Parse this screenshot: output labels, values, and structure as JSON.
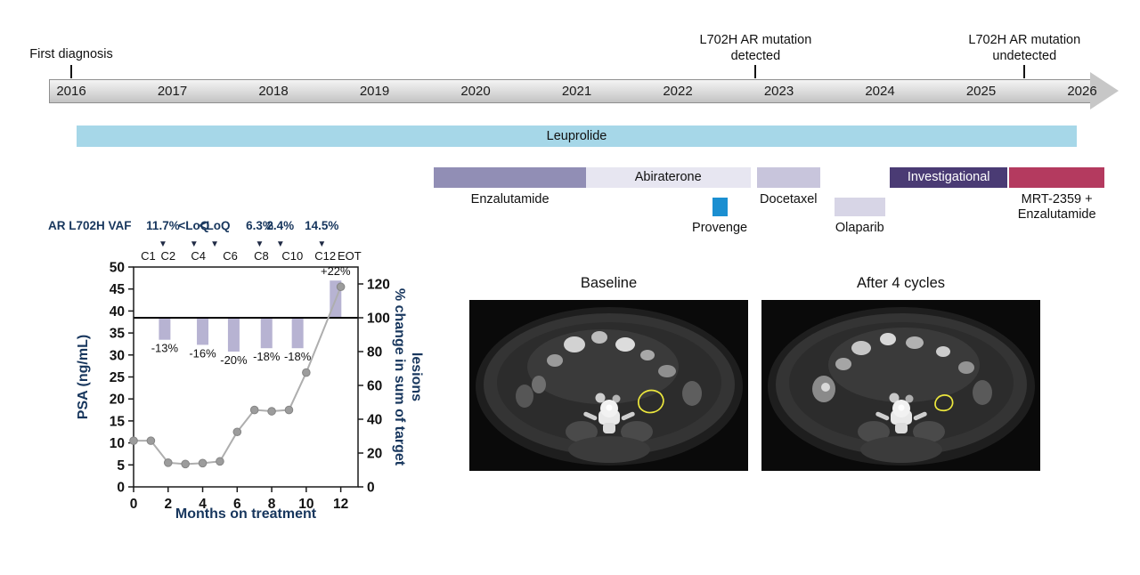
{
  "timeline": {
    "axis": {
      "start_year": 2016,
      "end_year": 2026,
      "years": [
        "2016",
        "2017",
        "2018",
        "2019",
        "2020",
        "2021",
        "2022",
        "2023",
        "2024",
        "2025",
        "2026"
      ]
    },
    "events": [
      {
        "label": "First diagnosis",
        "year": 2016.0
      },
      {
        "label": "L702H AR mutation\ndetected",
        "year": 2022.77
      },
      {
        "label": "L702H AR mutation\nundetected",
        "year": 2025.43
      }
    ],
    "treatments": [
      {
        "label": "Leuprolide",
        "start": 2016.05,
        "end": 2025.95,
        "lane": "hormone",
        "shape": "arrow",
        "color": "#a6d7e8",
        "label_pos": "inside",
        "text_color": "#111111"
      },
      {
        "label": "Enzalutamide",
        "start": 2019.59,
        "end": 2021.09,
        "lane": "row1",
        "shape": "bar",
        "color": "#918eb5",
        "label_pos": "below"
      },
      {
        "label": "Abiraterone",
        "start": 2021.09,
        "end": 2022.72,
        "lane": "row1",
        "shape": "bar",
        "color": "#e7e6f1",
        "label_pos": "inside",
        "text_color": "#111111"
      },
      {
        "label": "Provenge",
        "start": 2022.34,
        "end": 2022.49,
        "lane": "row2",
        "shape": "bar",
        "color": "#1b8fd1",
        "label_pos": "below"
      },
      {
        "label": "Docetaxel",
        "start": 2022.78,
        "end": 2023.41,
        "lane": "row1",
        "shape": "bar",
        "color": "#c8c5dc",
        "label_pos": "below"
      },
      {
        "label": "Olaparib",
        "start": 2023.55,
        "end": 2024.05,
        "lane": "row2",
        "shape": "bar",
        "color": "#d7d5e6",
        "label_pos": "below"
      },
      {
        "label": "Investigational",
        "start": 2024.1,
        "end": 2025.26,
        "lane": "row1",
        "shape": "bar",
        "color": "#4a3b74",
        "label_pos": "inside",
        "text_color": "#ffffff"
      },
      {
        "label": "MRT-2359 +\nEnzalutamide",
        "start": 2025.28,
        "end": 2026.22,
        "lane": "row1",
        "shape": "bar",
        "color": "#b43a5f",
        "label_pos": "below"
      }
    ]
  },
  "chart_data": {
    "type": "line+bar",
    "title": "",
    "xlabel": "Months on treatment",
    "ylabel_left": "PSA (ng/mL)",
    "ylabel_right": "% change in sum of target lesions",
    "ylabel_right_lines": [
      "% change in sum of target",
      "lesions"
    ],
    "xlim": [
      0,
      13
    ],
    "ylim_left": [
      0,
      50
    ],
    "ylim_right": [
      0,
      130
    ],
    "x_ticks": [
      0,
      2,
      4,
      6,
      8,
      10,
      12
    ],
    "y_ticks_left": [
      0,
      5,
      10,
      15,
      20,
      25,
      30,
      35,
      40,
      45,
      50
    ],
    "y_ticks_right": [
      0,
      20,
      40,
      60,
      80,
      100,
      120
    ],
    "baseline_right": 100,
    "psa_line": {
      "name": "PSA",
      "x": [
        0,
        1,
        2,
        3,
        4,
        5,
        6,
        7,
        8,
        9,
        10,
        12
      ],
      "y": [
        10.5,
        10.5,
        5.5,
        5.2,
        5.4,
        5.8,
        12.5,
        17.5,
        17.2,
        17.5,
        26,
        45.5
      ]
    },
    "lesion_bars": {
      "name": "% change in sum of target lesions",
      "x": [
        1.8,
        4.0,
        5.8,
        7.7,
        9.5,
        11.7
      ],
      "values": [
        -13,
        -16,
        -20,
        -18,
        -18,
        22
      ],
      "labels": [
        "-13%",
        "-16%",
        "-20%",
        "-18%",
        "-18%",
        "+22%"
      ]
    },
    "cycle_ticks": [
      {
        "label": "C1",
        "month": 0.85
      },
      {
        "label": "C2",
        "month": 2.0
      },
      {
        "label": "C4",
        "month": 3.75
      },
      {
        "label": "C6",
        "month": 5.6
      },
      {
        "label": "C8",
        "month": 7.4
      },
      {
        "label": "C10",
        "month": 9.2
      },
      {
        "label": "C12",
        "month": 11.1
      },
      {
        "label": "EOT",
        "month": 12.5
      }
    ],
    "vaf": {
      "label": "AR L702H VAF",
      "arrow": "▼",
      "markers": [
        {
          "value": "11.7%",
          "month": 1.7
        },
        {
          "value": "<LoQ",
          "month": 3.5
        },
        {
          "value": "<LoQ",
          "month": 4.7
        },
        {
          "value": "6.3%",
          "month": 7.3
        },
        {
          "value": "2.4%",
          "month": 8.5
        },
        {
          "value": "14.5%",
          "month": 10.9
        }
      ]
    },
    "colors": {
      "bar": "#b7b3d2",
      "line": "#aeaeae",
      "marker": "#9c9c9c",
      "axis_label": "#17365d",
      "baseline_line": "#000000"
    }
  },
  "ct": {
    "lesion_outline_color": "#ece73d",
    "panels": [
      {
        "title": "Baseline"
      },
      {
        "title": "After 4 cycles"
      }
    ]
  }
}
